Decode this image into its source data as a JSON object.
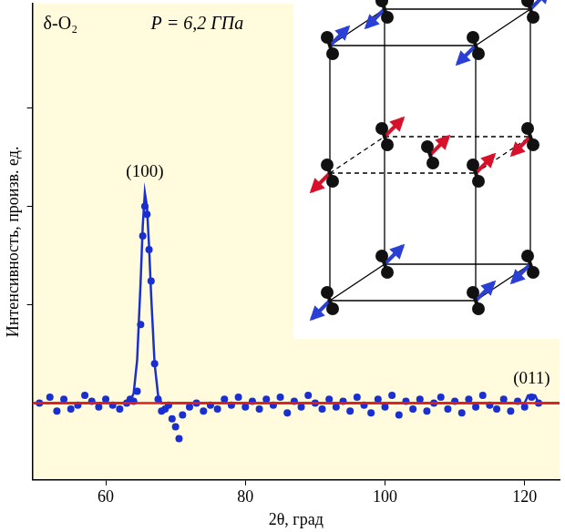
{
  "chart_data": {
    "type": "scatter",
    "title": "δ-O₂",
    "subtitle": "P = 6,2 ГПа",
    "x_label": "2θ, град",
    "y_label": "Интенсивность, произв. ед.",
    "xlim": [
      49.5,
      125
    ],
    "xticks": [
      60,
      80,
      100,
      120
    ],
    "ylim": [
      -39,
      203
    ],
    "yticks": [
      50,
      100,
      150
    ],
    "tick_labels": "x",
    "grid": false,
    "series": [
      {
        "type": "scatter",
        "color": "#1a2fd0",
        "marker": "circle",
        "x": [
          50.5,
          52,
          53,
          54,
          55,
          56,
          57,
          58,
          59,
          60,
          61,
          62,
          63,
          63.5,
          64,
          64.5,
          65,
          65.3,
          65.6,
          65.9,
          66.2,
          66.5,
          67,
          67.5,
          68,
          68.5,
          69,
          69.5,
          70,
          70.5,
          71,
          72,
          73,
          74,
          75,
          76,
          77,
          78,
          79,
          80,
          81,
          82,
          83,
          84,
          85,
          86,
          87,
          88,
          89,
          90,
          91,
          92,
          93,
          94,
          95,
          96,
          97,
          98,
          99,
          100,
          101,
          102,
          103,
          104,
          105,
          106,
          107,
          108,
          109,
          110,
          111,
          112,
          113,
          114,
          115,
          116,
          117,
          118,
          119,
          120,
          121,
          122
        ],
        "values": [
          0,
          3,
          -4,
          2,
          -3,
          -1,
          4,
          1,
          -2,
          2,
          -1,
          -3,
          0,
          2,
          1,
          6,
          40,
          85,
          100,
          96,
          78,
          62,
          20,
          2,
          -4,
          -3,
          -1,
          -8,
          -12,
          -18,
          -6,
          -2,
          0,
          -4,
          -1,
          -3,
          2,
          -1,
          3,
          -2,
          1,
          -3,
          2,
          -1,
          3,
          -5,
          1,
          -2,
          4,
          0,
          -3,
          2,
          -2,
          1,
          -4,
          3,
          -1,
          -5,
          2,
          -2,
          4,
          -6,
          1,
          -3,
          2,
          -4,
          0,
          3,
          -3,
          1,
          -5,
          2,
          -2,
          4,
          -1,
          -3,
          2,
          -4,
          1,
          -2,
          3,
          0
        ]
      },
      {
        "type": "line",
        "color": "#1a2fd0",
        "line_style": "solid",
        "x": [
          49.5,
          63,
          63.5,
          64,
          64.5,
          65,
          65.3,
          65.6,
          65.9,
          66.2,
          66.5,
          67,
          67.5,
          68,
          120,
          120.5,
          121.5,
          122,
          125
        ],
        "values": [
          0,
          0,
          1,
          5,
          22,
          62,
          90,
          107,
          100,
          80,
          55,
          20,
          4,
          0,
          0,
          4,
          4,
          0,
          0
        ]
      },
      {
        "type": "line",
        "color": "#e02020",
        "line_style": "solid",
        "x": [
          49.5,
          125
        ],
        "values": [
          0,
          0
        ]
      }
    ],
    "annotations": [
      {
        "text": "(100)",
        "x": 65.6,
        "y": 115
      },
      {
        "text": "(011)",
        "x": 121,
        "y": 10
      }
    ]
  }
}
